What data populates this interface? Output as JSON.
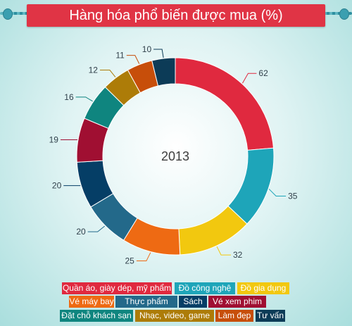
{
  "title": "Hàng hóa phổ biến được mua (%)",
  "chart_data": {
    "type": "pie",
    "style": "donut",
    "center_label": "2013",
    "legend_placement": "bottom",
    "categories": [
      "Quần áo, giày dép, mỹ phẩm",
      "Đồ công nghệ",
      "Đồ gia dụng",
      "Vé máy bay",
      "Thực phẩm",
      "Sách",
      "Vé xem phim",
      "Đặt chỗ khách sạn",
      "Nhạc, video, game",
      "Làm đẹp",
      "Tư vấn"
    ],
    "values": [
      62,
      35,
      32,
      25,
      20,
      20,
      19,
      16,
      12,
      11,
      10
    ],
    "colors": [
      "#e0293f",
      "#1ea5b9",
      "#f2c80f",
      "#ee6a13",
      "#23698a",
      "#053e66",
      "#a00f32",
      "#0f857f",
      "#ad7c08",
      "#c74e0a",
      "#0c3b57"
    ]
  }
}
